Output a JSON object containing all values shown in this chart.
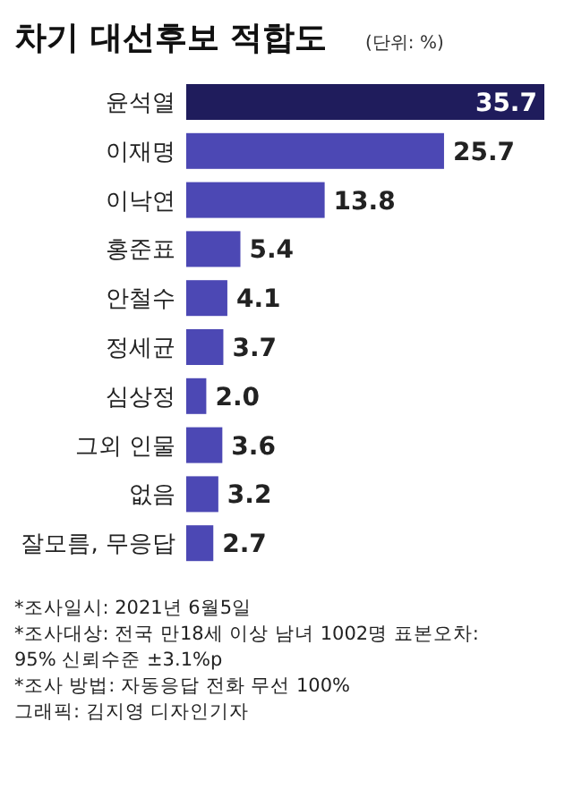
{
  "chart_data": {
    "type": "bar",
    "orientation": "horizontal",
    "title": "차기 대선후보 적합도",
    "subtitle": "(단위: %)",
    "categories": [
      "윤석열",
      "이재명",
      "이낙연",
      "홍준표",
      "안철수",
      "정세균",
      "심상정",
      "그외 인물",
      "없음",
      "잘모름, 무응답"
    ],
    "values": [
      35.7,
      25.7,
      13.8,
      5.4,
      4.1,
      3.7,
      2.0,
      3.6,
      3.2,
      2.7
    ],
    "colors": [
      "#1f1c5c",
      "#4c48b4",
      "#4c48b4",
      "#4c48b4",
      "#4c48b4",
      "#4c48b4",
      "#4c48b4",
      "#4c48b4",
      "#4c48b4",
      "#4c48b4"
    ],
    "value_labels": [
      "35.7",
      "25.7",
      "13.8",
      "5.4",
      "4.1",
      "3.7",
      "2.0",
      "3.6",
      "3.2",
      "2.7"
    ],
    "annotations": [
      "*조사일시: 2021년 6월5일",
      "*조사대상: 전국 만18세 이상 남녀 1002명 표본오차:\n 95% 신뢰수준 ±3.1%p",
      "*조사 방법: 자동응답 전화 무선 100%",
      "그래픽: 김지영 디자인기자"
    ]
  }
}
